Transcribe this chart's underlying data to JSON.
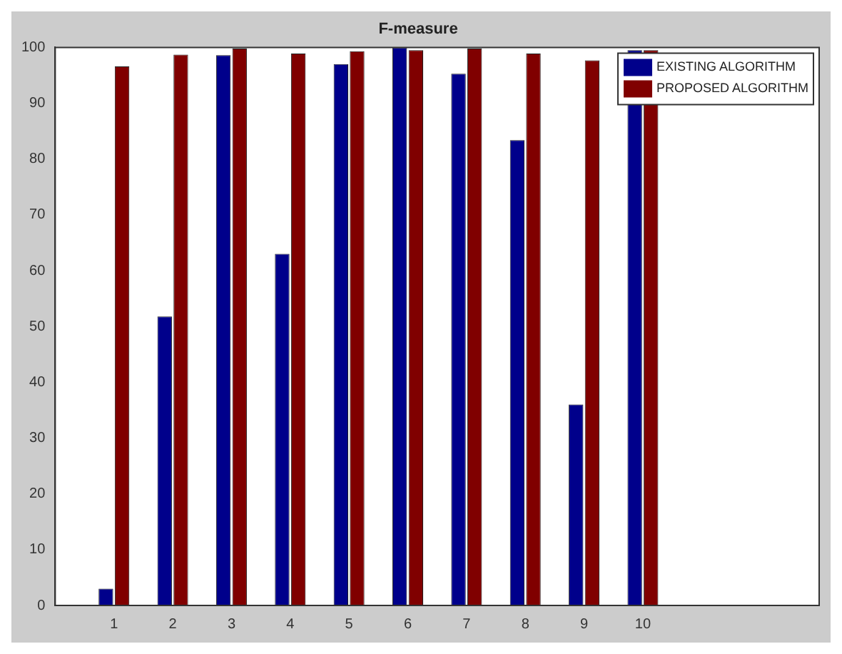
{
  "chart_data": {
    "type": "bar",
    "title": "F-measure",
    "categories": [
      "1",
      "2",
      "3",
      "4",
      "5",
      "6",
      "7",
      "8",
      "9",
      "10"
    ],
    "series": [
      {
        "name": "EXISTING ALGORITHM",
        "color": "#00008b",
        "values": [
          3,
          51.8,
          98.6,
          63,
          97,
          100,
          95.3,
          83.4,
          36,
          99.5
        ]
      },
      {
        "name": "PROPOSED ALGORITHM",
        "color": "#800000",
        "values": [
          96.6,
          98.7,
          99.8,
          98.9,
          99.3,
          99.5,
          99.8,
          98.9,
          97.7,
          99.5
        ]
      }
    ],
    "ylim": [
      0,
      100
    ],
    "yticks": [
      0,
      10,
      20,
      30,
      40,
      50,
      60,
      70,
      80,
      90,
      100
    ],
    "grid": false,
    "legend": "top right"
  }
}
